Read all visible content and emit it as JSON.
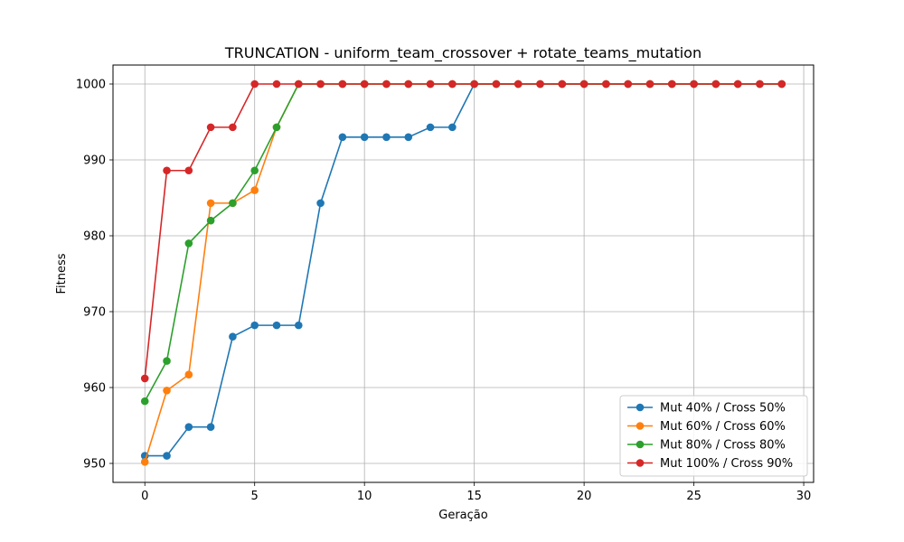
{
  "chart_data": {
    "type": "line",
    "title": "TRUNCATION - uniform_team_crossover + rotate_teams_mutation",
    "xlabel": "Geração",
    "ylabel": "Fitness",
    "xlim": [
      -1.45,
      30.45
    ],
    "ylim": [
      947.5,
      1002.5
    ],
    "xticks": [
      0,
      5,
      10,
      15,
      20,
      25,
      30
    ],
    "yticks": [
      950,
      960,
      970,
      980,
      990,
      1000
    ],
    "grid": true,
    "legend_position": "lower-right",
    "x": [
      0,
      1,
      2,
      3,
      4,
      5,
      6,
      7,
      8,
      9,
      10,
      11,
      12,
      13,
      14,
      15,
      16,
      17,
      18,
      19,
      20,
      21,
      22,
      23,
      24,
      25,
      26,
      27,
      28,
      29
    ],
    "series": [
      {
        "name": "Mut 40% / Cross 50%",
        "color": "#1f77b4",
        "values": [
          951.0,
          951.0,
          954.8,
          954.8,
          966.7,
          968.2,
          968.2,
          968.2,
          984.3,
          993.0,
          993.0,
          993.0,
          993.0,
          994.3,
          994.3,
          1000,
          1000,
          1000,
          1000,
          1000,
          1000,
          1000,
          1000,
          1000,
          1000,
          1000,
          1000,
          1000,
          1000,
          1000
        ]
      },
      {
        "name": "Mut 60% / Cross 60%",
        "color": "#ff7f0e",
        "values": [
          950.2,
          959.6,
          961.7,
          984.3,
          984.3,
          986.0,
          994.3,
          1000,
          1000,
          1000,
          1000,
          1000,
          1000,
          1000,
          1000,
          1000,
          1000,
          1000,
          1000,
          1000,
          1000,
          1000,
          1000,
          1000,
          1000,
          1000,
          1000,
          1000,
          1000,
          1000
        ]
      },
      {
        "name": "Mut 80% / Cross 80%",
        "color": "#2ca02c",
        "values": [
          958.2,
          963.5,
          979.0,
          982.0,
          984.3,
          988.6,
          994.3,
          1000,
          1000,
          1000,
          1000,
          1000,
          1000,
          1000,
          1000,
          1000,
          1000,
          1000,
          1000,
          1000,
          1000,
          1000,
          1000,
          1000,
          1000,
          1000,
          1000,
          1000,
          1000,
          1000
        ]
      },
      {
        "name": "Mut 100% / Cross 90%",
        "color": "#d62728",
        "values": [
          961.2,
          988.6,
          988.6,
          994.3,
          994.3,
          1000,
          1000,
          1000,
          1000,
          1000,
          1000,
          1000,
          1000,
          1000,
          1000,
          1000,
          1000,
          1000,
          1000,
          1000,
          1000,
          1000,
          1000,
          1000,
          1000,
          1000,
          1000,
          1000,
          1000,
          1000
        ]
      }
    ]
  }
}
